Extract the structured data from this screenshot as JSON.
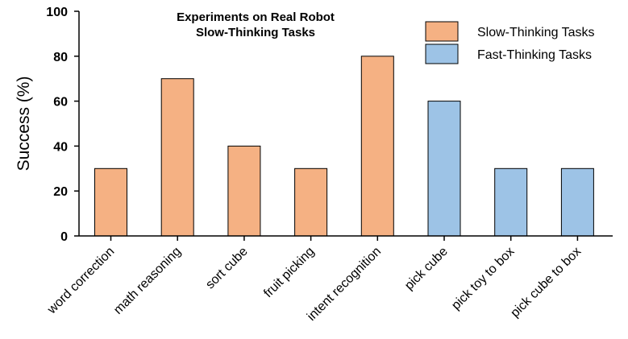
{
  "chart_data": {
    "type": "bar",
    "title_lines": [
      "Experiments on Real Robot",
      "Slow-Thinking Tasks"
    ],
    "xlabel": "",
    "ylabel": "Success (%)",
    "ylim": [
      0,
      100
    ],
    "yticks": [
      0,
      20,
      40,
      60,
      80,
      100
    ],
    "grid": false,
    "legend_position": "top-right",
    "categories": [
      "word correction",
      "math reasoning",
      "sort cube",
      "fruit picking",
      "intent recognition",
      "pick cube",
      "pick toy to box",
      "pick cube to box"
    ],
    "values": [
      30,
      70,
      40,
      30,
      80,
      60,
      30,
      30
    ],
    "groups": [
      "slow",
      "slow",
      "slow",
      "slow",
      "slow",
      "fast",
      "fast",
      "fast"
    ],
    "series": [
      {
        "key": "slow",
        "name": "Slow-Thinking Tasks",
        "color": "#F5B183"
      },
      {
        "key": "fast",
        "name": "Fast-Thinking Tasks",
        "color": "#9DC3E6"
      }
    ]
  }
}
